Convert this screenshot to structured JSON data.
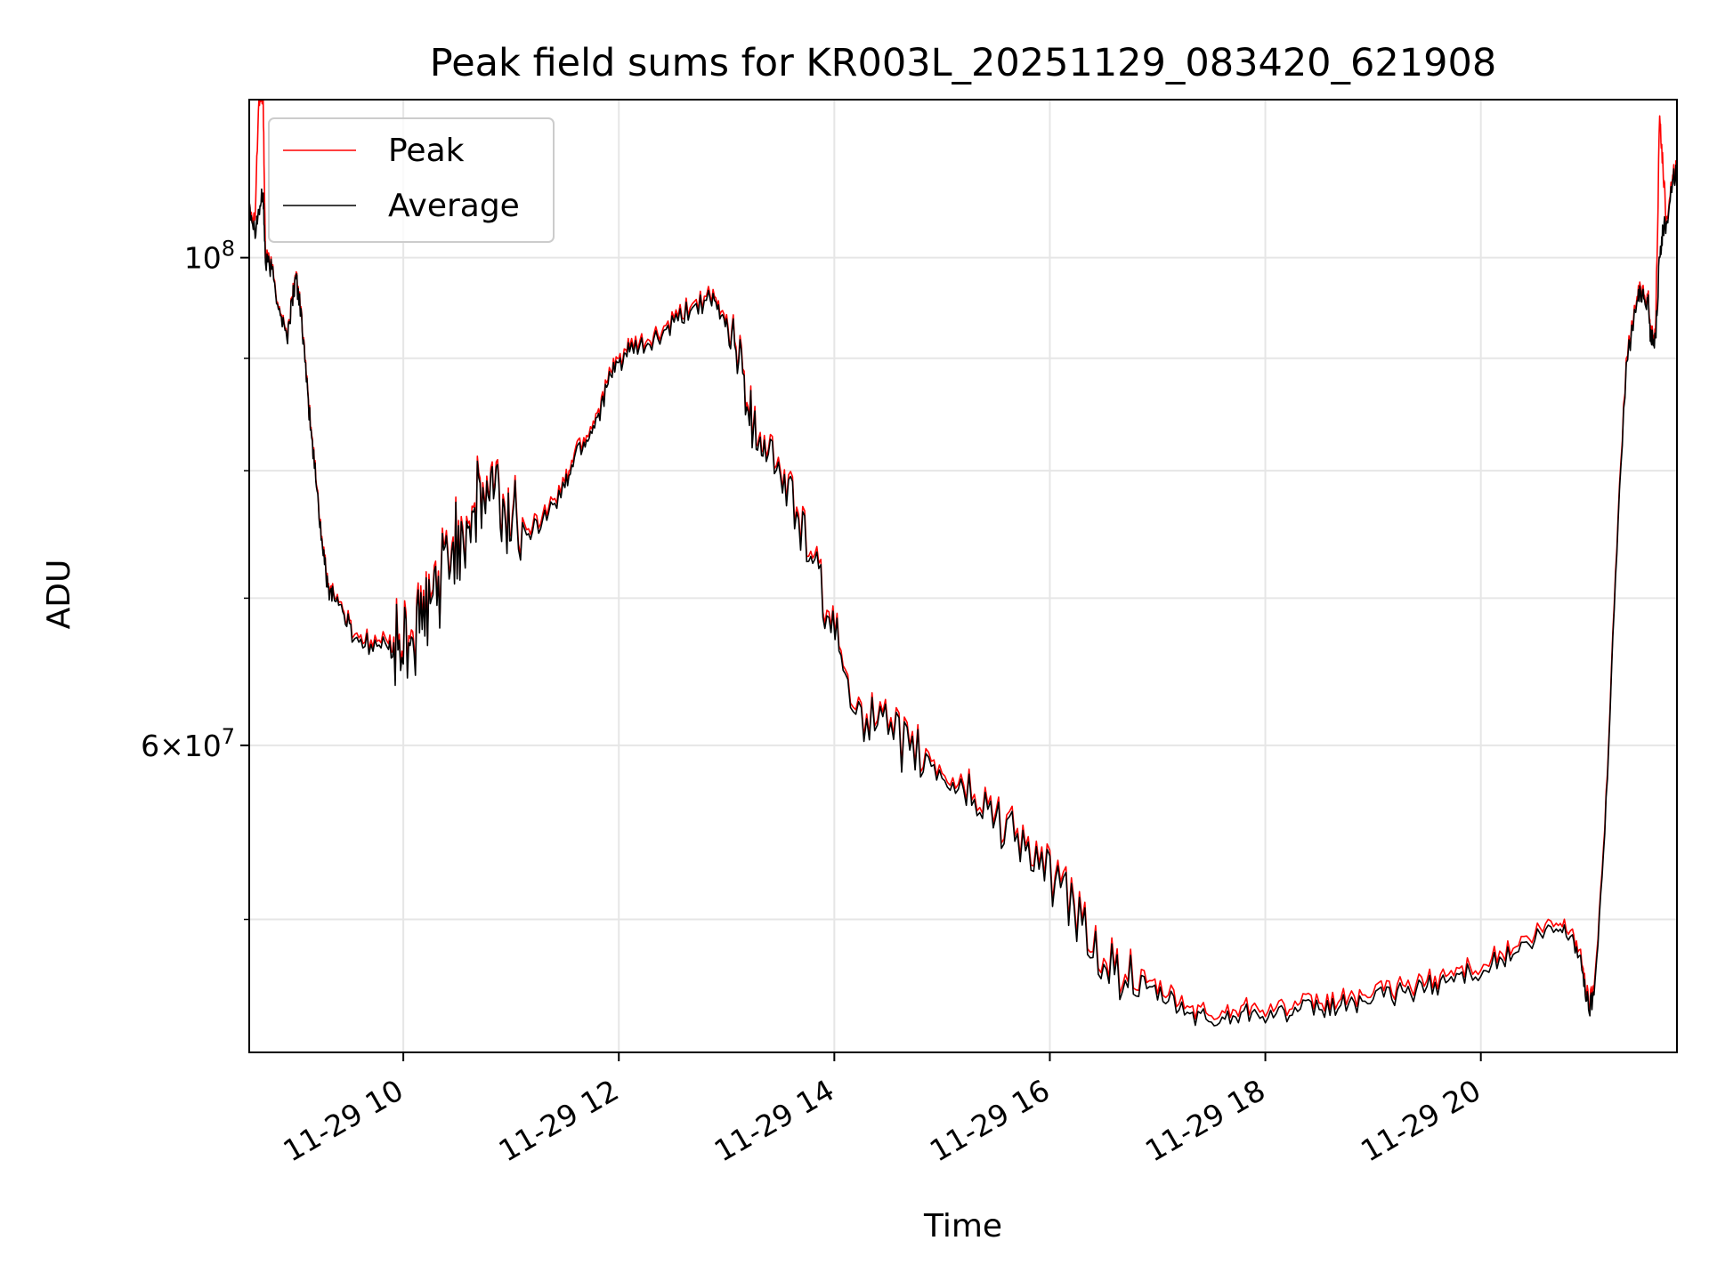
{
  "chart_data": {
    "type": "line",
    "title": "Peak field sums for KR003L_20251129_083420_621908",
    "xlabel": "Time",
    "ylabel": "ADU",
    "yscale": "log",
    "xlim": [
      8.57,
      21.82
    ],
    "ylim": [
      43500000,
      118000000
    ],
    "grid": true,
    "legend_position": "upper-left",
    "x_ticks": [
      {
        "value": 10,
        "label": "11-29 10"
      },
      {
        "value": 12,
        "label": "11-29 12"
      },
      {
        "value": 14,
        "label": "11-29 14"
      },
      {
        "value": 16,
        "label": "11-29 16"
      },
      {
        "value": 18,
        "label": "11-29 18"
      },
      {
        "value": 20,
        "label": "11-29 20"
      }
    ],
    "y_major_ticks": [
      {
        "value": 60000000,
        "base": "6",
        "exp": "7"
      },
      {
        "value": 100000000,
        "base": "10",
        "exp": "8"
      }
    ],
    "y_minor_ticks": [
      50000000,
      70000000,
      80000000,
      90000000
    ],
    "series": [
      {
        "name": "Peak",
        "color": "#ff0000",
        "points": [
          [
            8.57,
            106000000
          ],
          [
            8.62,
            104000000
          ],
          [
            8.66,
            118000000
          ],
          [
            8.7,
            118000000
          ],
          [
            8.72,
            100000000
          ],
          [
            8.78,
            99000000
          ],
          [
            8.85,
            95000000
          ],
          [
            8.92,
            92000000
          ],
          [
            8.97,
            96000000
          ],
          [
            9.0,
            98000000
          ],
          [
            9.05,
            95000000
          ],
          [
            9.1,
            88000000
          ],
          [
            9.15,
            83000000
          ],
          [
            9.2,
            78500000
          ],
          [
            9.25,
            74000000
          ],
          [
            9.3,
            71000000
          ],
          [
            9.35,
            70600000
          ],
          [
            9.45,
            69000000
          ],
          [
            9.55,
            67400000
          ],
          [
            9.7,
            67000000
          ],
          [
            9.85,
            66900000
          ],
          [
            9.95,
            66700000
          ],
          [
            10.05,
            67300000
          ],
          [
            10.15,
            68000000
          ],
          [
            10.25,
            70000000
          ],
          [
            10.35,
            72000000
          ],
          [
            10.45,
            74000000
          ],
          [
            10.55,
            75500000
          ],
          [
            10.65,
            77000000
          ],
          [
            10.75,
            78000000
          ],
          [
            10.85,
            79000000
          ],
          [
            10.95,
            76000000
          ],
          [
            11.05,
            77000000
          ],
          [
            11.2,
            75500000
          ],
          [
            11.35,
            77000000
          ],
          [
            11.5,
            79000000
          ],
          [
            11.6,
            82000000
          ],
          [
            11.7,
            83000000
          ],
          [
            11.8,
            85000000
          ],
          [
            11.9,
            88000000
          ],
          [
            12.0,
            90000000
          ],
          [
            12.1,
            91000000
          ],
          [
            12.25,
            91500000
          ],
          [
            12.4,
            92500000
          ],
          [
            12.55,
            94000000
          ],
          [
            12.7,
            95500000
          ],
          [
            12.85,
            96000000
          ],
          [
            12.95,
            94500000
          ],
          [
            13.05,
            93000000
          ],
          [
            13.15,
            89000000
          ],
          [
            13.25,
            84000000
          ],
          [
            13.35,
            83000000
          ],
          [
            13.5,
            80000000
          ],
          [
            13.65,
            77000000
          ],
          [
            13.8,
            73000000
          ],
          [
            13.95,
            69000000
          ],
          [
            14.1,
            65000000
          ],
          [
            14.3,
            62000000
          ],
          [
            14.5,
            61000000
          ],
          [
            14.7,
            60000000
          ],
          [
            14.9,
            59000000
          ],
          [
            15.1,
            58000000
          ],
          [
            15.3,
            57000000
          ],
          [
            15.5,
            56000000
          ],
          [
            15.7,
            55000000
          ],
          [
            15.9,
            53000000
          ],
          [
            16.1,
            52000000
          ],
          [
            16.3,
            50000000
          ],
          [
            16.5,
            48000000
          ],
          [
            16.7,
            47200000
          ],
          [
            16.9,
            46800000
          ],
          [
            17.1,
            46200000
          ],
          [
            17.3,
            45600000
          ],
          [
            17.5,
            45200000
          ],
          [
            17.7,
            45500000
          ],
          [
            17.9,
            45800000
          ],
          [
            18.1,
            45600000
          ],
          [
            18.3,
            45700000
          ],
          [
            18.5,
            45800000
          ],
          [
            18.7,
            46000000
          ],
          [
            18.9,
            46200000
          ],
          [
            19.1,
            46400000
          ],
          [
            19.3,
            46600000
          ],
          [
            19.5,
            46900000
          ],
          [
            19.7,
            47200000
          ],
          [
            19.9,
            47600000
          ],
          [
            20.1,
            48000000
          ],
          [
            20.3,
            48500000
          ],
          [
            20.5,
            49200000
          ],
          [
            20.7,
            49800000
          ],
          [
            20.85,
            49500000
          ],
          [
            20.95,
            47500000
          ],
          [
            21.0,
            45800000
          ],
          [
            21.05,
            46500000
          ],
          [
            21.15,
            55000000
          ],
          [
            21.25,
            72000000
          ],
          [
            21.35,
            90000000
          ],
          [
            21.45,
            96000000
          ],
          [
            21.5,
            97000000
          ],
          [
            21.55,
            96000000
          ],
          [
            21.58,
            92000000
          ],
          [
            21.62,
            92500000
          ],
          [
            21.66,
            116000000
          ],
          [
            21.69,
            110000000
          ],
          [
            21.72,
            104000000
          ],
          [
            21.78,
            109000000
          ],
          [
            21.82,
            110000000
          ]
        ]
      },
      {
        "name": "Average",
        "color": "#000000",
        "points": [
          [
            8.57,
            106000000
          ],
          [
            8.62,
            103000000
          ],
          [
            8.66,
            105000000
          ],
          [
            8.7,
            107000000
          ],
          [
            8.72,
            99500000
          ],
          [
            8.78,
            98800000
          ],
          [
            8.85,
            94800000
          ],
          [
            8.92,
            91800000
          ],
          [
            8.97,
            95800000
          ],
          [
            9.0,
            97800000
          ],
          [
            9.05,
            94800000
          ],
          [
            9.1,
            87800000
          ],
          [
            9.15,
            82800000
          ],
          [
            9.2,
            78300000
          ],
          [
            9.25,
            73800000
          ],
          [
            9.3,
            70800000
          ],
          [
            9.35,
            70400000
          ],
          [
            9.45,
            68800000
          ],
          [
            9.55,
            67100000
          ],
          [
            9.7,
            66700000
          ],
          [
            9.85,
            66500000
          ],
          [
            9.95,
            66300000
          ],
          [
            10.05,
            66800000
          ],
          [
            10.15,
            67500000
          ],
          [
            10.25,
            69600000
          ],
          [
            10.35,
            71600000
          ],
          [
            10.45,
            73600000
          ],
          [
            10.55,
            75100000
          ],
          [
            10.65,
            76600000
          ],
          [
            10.75,
            77600000
          ],
          [
            10.85,
            78600000
          ],
          [
            10.95,
            75600000
          ],
          [
            11.05,
            76600000
          ],
          [
            11.2,
            75100000
          ],
          [
            11.35,
            76600000
          ],
          [
            11.5,
            78600000
          ],
          [
            11.6,
            81600000
          ],
          [
            11.7,
            82600000
          ],
          [
            11.8,
            84600000
          ],
          [
            11.9,
            87600000
          ],
          [
            12.0,
            89600000
          ],
          [
            12.1,
            90600000
          ],
          [
            12.25,
            91100000
          ],
          [
            12.4,
            92100000
          ],
          [
            12.55,
            93600000
          ],
          [
            12.7,
            95100000
          ],
          [
            12.85,
            95600000
          ],
          [
            12.95,
            94100000
          ],
          [
            13.05,
            92600000
          ],
          [
            13.15,
            88600000
          ],
          [
            13.25,
            83600000
          ],
          [
            13.35,
            82600000
          ],
          [
            13.5,
            79600000
          ],
          [
            13.65,
            76600000
          ],
          [
            13.8,
            72600000
          ],
          [
            13.95,
            68600000
          ],
          [
            14.1,
            64700000
          ],
          [
            14.3,
            61700000
          ],
          [
            14.5,
            60700000
          ],
          [
            14.7,
            59700000
          ],
          [
            14.9,
            58700000
          ],
          [
            15.1,
            57700000
          ],
          [
            15.3,
            56700000
          ],
          [
            15.5,
            55700000
          ],
          [
            15.7,
            54700000
          ],
          [
            15.9,
            52700000
          ],
          [
            16.1,
            51700000
          ],
          [
            16.3,
            49700000
          ],
          [
            16.5,
            47700000
          ],
          [
            16.7,
            46900000
          ],
          [
            16.9,
            46500000
          ],
          [
            17.1,
            45900000
          ],
          [
            17.3,
            45300000
          ],
          [
            17.5,
            44900000
          ],
          [
            17.7,
            45200000
          ],
          [
            17.9,
            45500000
          ],
          [
            18.1,
            45300000
          ],
          [
            18.3,
            45400000
          ],
          [
            18.5,
            45500000
          ],
          [
            18.7,
            45700000
          ],
          [
            18.9,
            45900000
          ],
          [
            19.1,
            46100000
          ],
          [
            19.3,
            46300000
          ],
          [
            19.5,
            46600000
          ],
          [
            19.7,
            46900000
          ],
          [
            19.9,
            47300000
          ],
          [
            20.1,
            47700000
          ],
          [
            20.3,
            48200000
          ],
          [
            20.5,
            48900000
          ],
          [
            20.7,
            49500000
          ],
          [
            20.85,
            49200000
          ],
          [
            20.95,
            47200000
          ],
          [
            21.0,
            45500000
          ],
          [
            21.05,
            46200000
          ],
          [
            21.15,
            54700000
          ],
          [
            21.25,
            71600000
          ],
          [
            21.35,
            89600000
          ],
          [
            21.45,
            95600000
          ],
          [
            21.5,
            96600000
          ],
          [
            21.55,
            95600000
          ],
          [
            21.58,
            91600000
          ],
          [
            21.62,
            92100000
          ],
          [
            21.66,
            100000000
          ],
          [
            21.69,
            103000000
          ],
          [
            21.72,
            103500000
          ],
          [
            21.78,
            108500000
          ],
          [
            21.82,
            109500000
          ]
        ]
      }
    ]
  }
}
